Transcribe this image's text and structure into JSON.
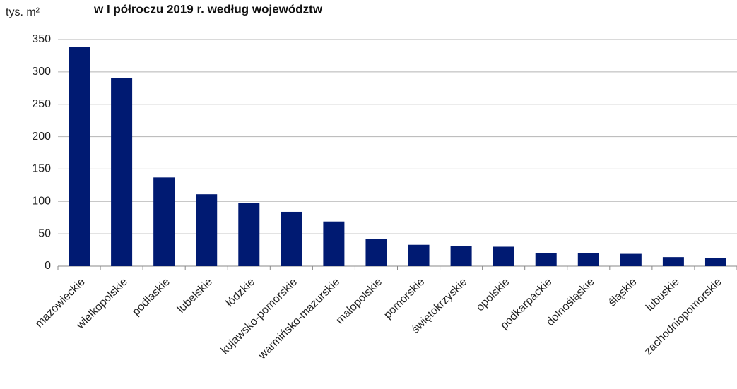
{
  "chart_data": {
    "type": "bar",
    "title": "w I półroczu 2019 r. według województw",
    "y_label": "tys. m²",
    "categories": [
      "mazowieckie",
      "wielkopolskie",
      "podlaskie",
      "lubelskie",
      "łódzkie",
      "kujawsko-pomorskie",
      "warmińsko-mazurskie",
      "małopolskie",
      "pomorskie",
      "świętokrzyskie",
      "opolskie",
      "podkarpackie",
      "dolnośląskie",
      "śląskie",
      "lubuskie",
      "zachodniopomorskie"
    ],
    "values": [
      338,
      291,
      137,
      111,
      98,
      84,
      69,
      42,
      33,
      31,
      30,
      20,
      20,
      19,
      14,
      13
    ],
    "color": "#001a72",
    "ylim": [
      0,
      350
    ],
    "yticks": [
      0,
      50,
      100,
      150,
      200,
      250,
      300,
      350
    ],
    "grid": true
  }
}
